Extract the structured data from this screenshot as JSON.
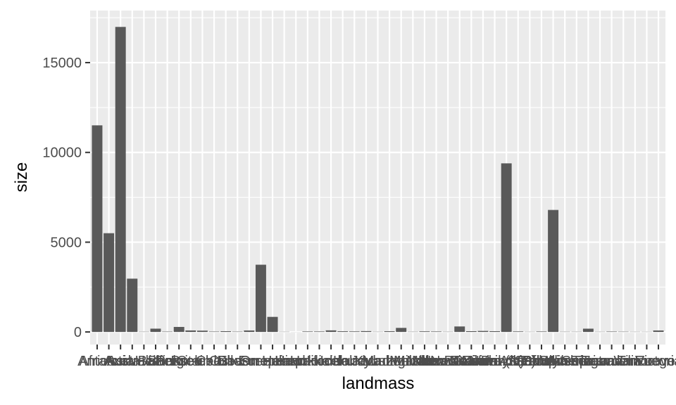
{
  "chart_data": {
    "type": "bar",
    "xlabel": "landmass",
    "ylabel": "size",
    "ylim": [
      -700,
      17900
    ],
    "y_ticks": [
      0,
      5000,
      10000,
      15000
    ],
    "grid": true,
    "categories": [
      "Africa",
      "Antarctica",
      "Asia",
      "Australia",
      "Axel Heiberg",
      "Baffin",
      "Banks",
      "Borneo",
      "Britain",
      "Celebes",
      "Celon",
      "Cuba",
      "Devon",
      "Ellesmere",
      "Europe",
      "Greenland",
      "Hainan",
      "Hawaii",
      "Hispaniola",
      "Hokkaido",
      "Honshu",
      "Iceland",
      "Ireland",
      "Java",
      "Kyushu",
      "Luzon",
      "Madagascar",
      "Melville",
      "Mindanao",
      "Moluccas",
      "New Britain",
      "New Guinea",
      "New Zealand (N)",
      "New Zealand (S)",
      "Newfoundland",
      "North America",
      "Novaya Zemlya",
      "Prince of Wales",
      "Sakhalin",
      "South America",
      "Southampton",
      "Spitsbergen",
      "Sumatra",
      "Taiwan",
      "Tasmania",
      "Tierra del Fuego",
      "Timor",
      "Vancouver",
      "Victoria"
    ],
    "values": [
      11506,
      5500,
      16988,
      2968,
      16,
      184,
      23,
      280,
      84,
      73,
      25,
      43,
      21,
      82,
      3745,
      840,
      13,
      4,
      30,
      30,
      89,
      40,
      33,
      49,
      14,
      42,
      227,
      16,
      36,
      29,
      15,
      306,
      44,
      58,
      43,
      9390,
      32,
      13,
      29,
      6795,
      16,
      15,
      183,
      14,
      26,
      19,
      13,
      12,
      82
    ],
    "bar_color": "#595959",
    "panel_color": "#ebebeb",
    "grid_color": "#ffffff"
  }
}
